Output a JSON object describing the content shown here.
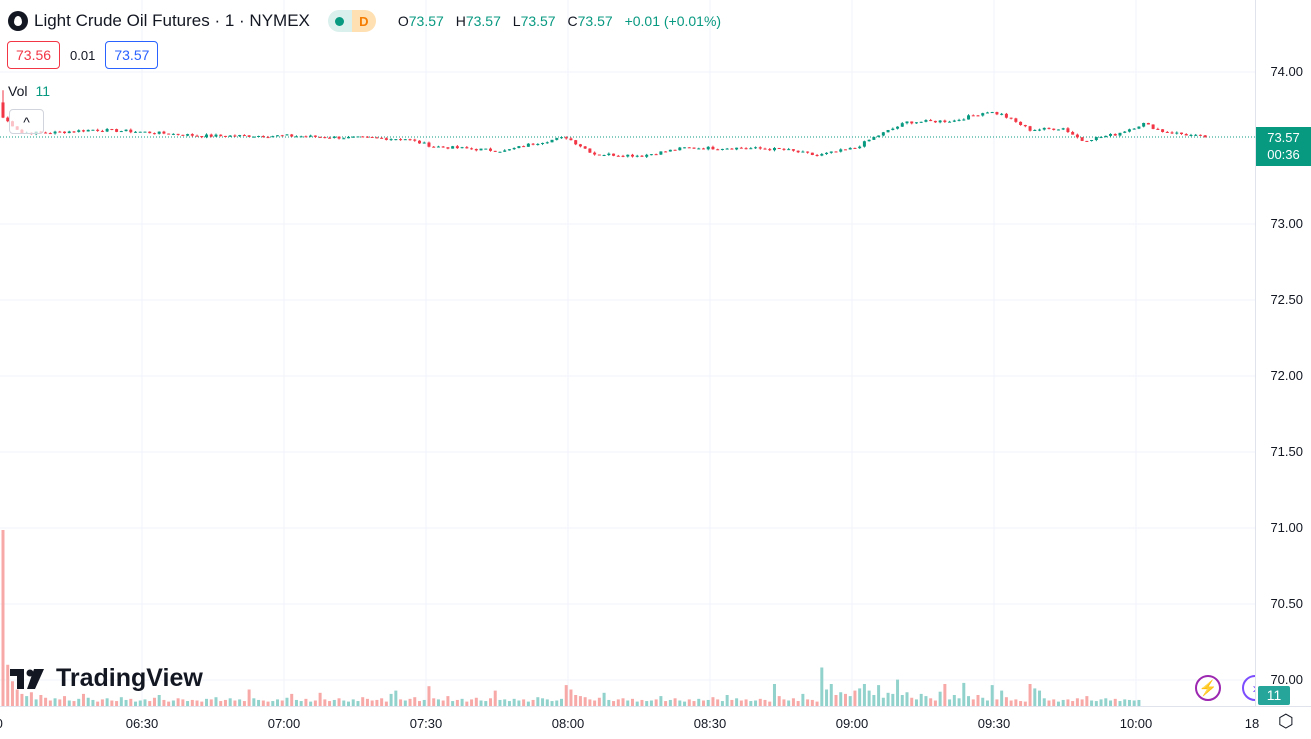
{
  "header": {
    "title": "Light Crude Oil Futures · 1 · NYMEX",
    "status_dot": "market-open",
    "delay_badge": "D",
    "ohlc": {
      "o_label": "O",
      "o": "73.57",
      "h_label": "H",
      "h": "73.57",
      "l_label": "L",
      "l": "73.57",
      "c_label": "C",
      "c": "73.57",
      "change": "+0.01 (+0.01%)"
    }
  },
  "quote": {
    "bid": "73.56",
    "spread": "0.01",
    "ask": "73.57"
  },
  "volume_legend": {
    "label": "Vol",
    "value": "11"
  },
  "collapse_glyph": "^",
  "logo": "TradingView",
  "price_axis": {
    "labels": [
      "74.00",
      "73.00",
      "72.50",
      "72.00",
      "71.50",
      "71.00",
      "70.50",
      "70.00"
    ],
    "current_price": "73.57",
    "countdown": "00:36",
    "volume_badge": "11"
  },
  "time_axis": {
    "labels": [
      "0",
      "06:30",
      "07:00",
      "07:30",
      "08:00",
      "08:30",
      "09:00",
      "09:30",
      "10:00",
      "18"
    ]
  },
  "colors": {
    "up": "#089981",
    "down": "#f23645",
    "vol_up": "#92d2cc",
    "vol_down": "#f7a9a7",
    "grid": "#f0f3fa"
  },
  "chart_data": {
    "type": "candlestick",
    "interval": "1 minute",
    "x_range": [
      "06:00",
      "10:14"
    ],
    "ylim": [
      70.0,
      74.0
    ],
    "close_path": [
      [
        "06:00",
        73.7
      ],
      [
        "06:04",
        73.6
      ],
      [
        "06:10",
        73.6
      ],
      [
        "06:19",
        73.62
      ],
      [
        "06:27",
        73.61
      ],
      [
        "06:42",
        73.58
      ],
      [
        "07:00",
        73.58
      ],
      [
        "07:10",
        73.57
      ],
      [
        "07:25",
        73.56
      ],
      [
        "07:31",
        73.51
      ],
      [
        "07:46",
        73.48
      ],
      [
        "07:52",
        73.53
      ],
      [
        "07:59",
        73.57
      ],
      [
        "08:05",
        73.46
      ],
      [
        "08:15",
        73.45
      ],
      [
        "08:24",
        73.5
      ],
      [
        "08:36",
        73.5
      ],
      [
        "08:45",
        73.49
      ],
      [
        "08:52",
        73.45
      ],
      [
        "09:00",
        73.5
      ],
      [
        "09:04",
        73.57
      ],
      [
        "09:11",
        73.67
      ],
      [
        "09:21",
        73.68
      ],
      [
        "09:28",
        73.74
      ],
      [
        "09:31",
        73.72
      ],
      [
        "09:37",
        73.62
      ],
      [
        "09:44",
        73.63
      ],
      [
        "09:48",
        73.55
      ],
      [
        "09:55",
        73.59
      ],
      [
        "10:01",
        73.66
      ],
      [
        "10:05",
        73.61
      ],
      [
        "10:14",
        73.57
      ]
    ],
    "first_bar_high": 73.88,
    "volume": [
      320,
      75,
      45,
      30,
      22,
      18,
      25,
      12,
      20,
      15,
      10,
      14,
      12,
      18,
      10,
      9,
      13,
      22,
      15,
      11,
      8,
      12,
      14,
      10,
      9,
      16,
      11,
      13,
      8,
      10,
      12,
      9,
      15,
      20,
      11,
      8,
      10,
      14,
      12,
      9,
      11,
      10,
      8,
      13,
      12,
      16,
      9,
      11,
      14,
      10,
      12,
      9,
      30,
      14,
      11,
      10,
      8,
      9,
      12,
      10,
      15,
      22,
      11,
      9,
      13,
      8,
      10,
      24,
      12,
      9,
      11,
      14,
      10,
      8,
      12,
      9,
      16,
      13,
      10,
      11,
      14,
      8,
      22,
      28,
      12,
      10,
      13,
      16,
      9,
      11,
      36,
      14,
      12,
      10,
      18,
      9,
      11,
      13,
      8,
      12,
      15,
      10,
      9,
      14,
      28,
      11,
      12,
      9,
      13,
      10,
      12,
      8,
      11,
      16,
      14,
      12,
      9,
      10,
      13,
      38,
      30,
      20,
      18,
      16,
      12,
      10,
      15,
      24,
      11,
      9,
      12,
      14,
      10,
      13,
      8,
      11,
      9,
      10,
      12,
      18,
      9,
      11,
      14,
      10,
      8,
      12,
      9,
      13,
      10,
      11,
      16,
      12,
      9,
      20,
      11,
      14,
      10,
      12,
      9,
      10,
      13,
      11,
      8,
      40,
      18,
      12,
      10,
      14,
      9,
      22,
      12,
      11,
      8,
      70,
      30,
      40,
      20,
      25,
      22,
      18,
      28,
      32,
      40,
      28,
      20,
      38,
      15,
      24,
      22,
      48,
      20,
      25,
      15,
      12,
      22,
      18,
      14,
      10,
      26,
      40,
      12,
      20,
      14,
      42,
      18,
      12,
      20,
      15,
      10,
      38,
      12,
      28,
      16,
      10,
      12,
      9,
      8,
      40,
      32,
      28,
      14,
      10,
      12,
      8,
      11,
      12,
      9,
      14,
      12,
      18,
      10,
      9,
      12,
      14,
      10,
      13,
      9,
      12,
      11,
      10,
      11
    ]
  }
}
